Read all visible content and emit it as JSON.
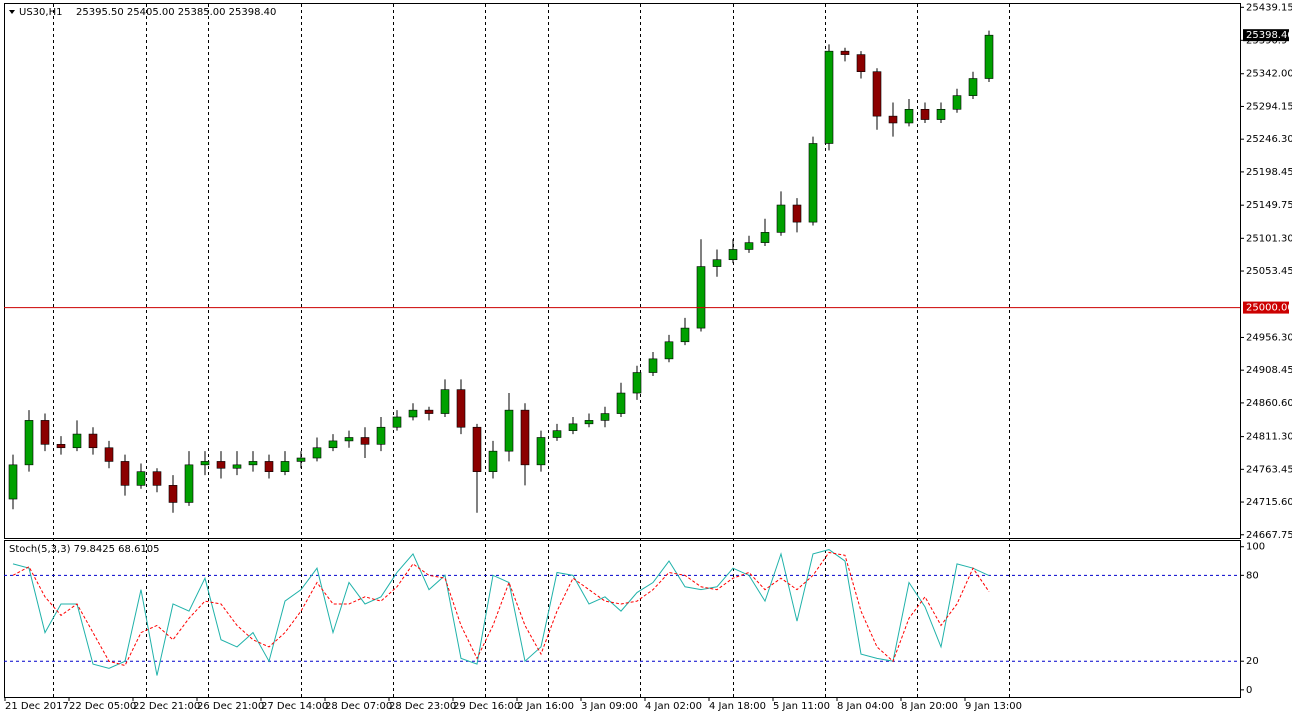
{
  "chart_data": [
    {
      "type": "candlestick",
      "title": "US30,H1",
      "subtitle": "25395.50 25405.00 25385.00 25398.40",
      "categories": [
        "21 Dec 2017",
        null,
        null,
        null,
        "22 Dec 05:00",
        null,
        null,
        null,
        "22 Dec 21:00",
        null,
        null,
        null,
        "26 Dec 21:00",
        null,
        null,
        null,
        "27 Dec 14:00",
        null,
        null,
        null,
        "28 Dec 07:00",
        null,
        null,
        null,
        "28 Dec 23:00",
        null,
        null,
        null,
        "29 Dec 16:00",
        null,
        null,
        null,
        "2 Jan 16:00",
        null,
        null,
        null,
        "3 Jan 09:00",
        null,
        null,
        null,
        "4 Jan 02:00",
        null,
        null,
        null,
        "4 Jan 18:00",
        null,
        null,
        null,
        "5 Jan 11:00",
        null,
        null,
        null,
        "8 Jan 04:00",
        null,
        null,
        null,
        "8 Jan 20:00",
        null,
        null,
        null,
        "9 Jan 13:00",
        null
      ],
      "open": [
        24720,
        24770,
        24835,
        24800,
        24795,
        24815,
        24795,
        24775,
        24740,
        24760,
        24740,
        24715,
        24770,
        24775,
        24765,
        24770,
        24775,
        24760,
        24775,
        24780,
        24795,
        24805,
        24810,
        24800,
        24825,
        24840,
        24850,
        24845,
        24880,
        24825,
        24760,
        24790,
        24850,
        24770,
        24810,
        24820,
        24830,
        24835,
        24845,
        24875,
        24905,
        24925,
        24950,
        24970,
        25060,
        25070,
        25085,
        25095,
        25110,
        25150,
        25125,
        25240,
        25375,
        25370,
        25345,
        25280,
        25270,
        25290,
        25275,
        25290,
        25310,
        25335
      ],
      "high": [
        24785,
        24850,
        24845,
        24812,
        24835,
        24825,
        24805,
        24785,
        24772,
        24765,
        24755,
        24790,
        24790,
        24790,
        24790,
        24790,
        24785,
        24790,
        24790,
        24810,
        24815,
        24820,
        24825,
        24840,
        24850,
        24860,
        24855,
        24895,
        24895,
        24830,
        24805,
        24875,
        24860,
        24820,
        24830,
        24840,
        24845,
        24855,
        24890,
        24915,
        24935,
        24960,
        24985,
        25100,
        25085,
        25100,
        25105,
        25130,
        25170,
        25160,
        25250,
        25385,
        25380,
        25375,
        25350,
        25300,
        25305,
        25300,
        25300,
        25320,
        25345,
        25405
      ],
      "low": [
        24705,
        24760,
        24790,
        24785,
        24790,
        24785,
        24765,
        24725,
        24735,
        24730,
        24700,
        24710,
        24755,
        24750,
        24755,
        24760,
        24750,
        24755,
        24765,
        24775,
        24790,
        24795,
        24780,
        24790,
        24820,
        24835,
        24835,
        24840,
        24815,
        24700,
        24750,
        24775,
        24740,
        24760,
        24805,
        24815,
        24825,
        24825,
        24840,
        24865,
        24900,
        24920,
        24945,
        24965,
        25045,
        25065,
        25080,
        25090,
        25105,
        25110,
        25120,
        25230,
        25360,
        25335,
        25260,
        25250,
        25265,
        25270,
        25270,
        25285,
        25305,
        25330
      ],
      "close": [
        24770,
        24835,
        24800,
        24795,
        24815,
        24795,
        24775,
        24740,
        24760,
        24740,
        24715,
        24770,
        24775,
        24765,
        24770,
        24775,
        24760,
        24775,
        24780,
        24795,
        24805,
        24810,
        24800,
        24825,
        24840,
        24850,
        24845,
        24880,
        24825,
        24760,
        24790,
        24850,
        24770,
        24810,
        24820,
        24830,
        24835,
        24845,
        24875,
        24905,
        24925,
        24950,
        24970,
        25060,
        25070,
        25085,
        25095,
        25110,
        25150,
        25125,
        25240,
        25375,
        25370,
        25345,
        25280,
        25270,
        25290,
        25275,
        25290,
        25310,
        25335,
        25398.4
      ],
      "up_color": "#00a000",
      "down_color": "#8b0000",
      "wick_color": "#000000",
      "ylim": [
        24663,
        25444
      ],
      "yticks": [
        25439.15,
        25390.9,
        {
          "value": 25342,
          "label": "25342.00"
        },
        25294.15,
        {
          "value": 25246.3,
          "label": "25246.30"
        },
        25198.45,
        25149.75,
        {
          "value": 25101.3,
          "label": "25101.30"
        },
        25053.45,
        {
          "value": 24956.3,
          "label": "24956.30"
        },
        24908.45,
        {
          "value": 24860.6,
          "label": "24860.60"
        },
        {
          "value": 24811.3,
          "label": "24811.30"
        },
        24763.45,
        {
          "value": 24715.6,
          "label": "24715.60"
        },
        24667.75
      ],
      "price_line": {
        "value": 25000,
        "label": "25000.00",
        "color": "#cc0000"
      },
      "last_price": {
        "value": 25398.4,
        "label": "25398.40",
        "color": "#000000"
      }
    },
    {
      "type": "line",
      "title": "Stoch(5,3,3) 79.8425 68.6105",
      "series": [
        {
          "color": "#20b2aa",
          "dash": false,
          "values": [
            88,
            85,
            40,
            60,
            60,
            18,
            15,
            20,
            70,
            10,
            60,
            55,
            78,
            35,
            30,
            40,
            20,
            62,
            70,
            85,
            40,
            75,
            60,
            65,
            82,
            95,
            70,
            80,
            22,
            18,
            80,
            75,
            20,
            30,
            82,
            80,
            60,
            65,
            55,
            68,
            75,
            90,
            72,
            70,
            72,
            85,
            80,
            62,
            95,
            48,
            95,
            98,
            90,
            25,
            22,
            20,
            75,
            58,
            30,
            88,
            85,
            79.8425
          ]
        },
        {
          "color": "#ff0000",
          "dash": true,
          "values": [
            80,
            86,
            65,
            52,
            60,
            40,
            20,
            17,
            40,
            45,
            35,
            50,
            62,
            60,
            45,
            35,
            30,
            40,
            55,
            75,
            60,
            60,
            65,
            62,
            72,
            88,
            80,
            78,
            45,
            22,
            45,
            75,
            45,
            25,
            55,
            78,
            70,
            62,
            60,
            62,
            70,
            82,
            80,
            72,
            70,
            78,
            82,
            70,
            78,
            70,
            80,
            96,
            94,
            55,
            30,
            20,
            50,
            65,
            45,
            60,
            85,
            68.6105
          ]
        }
      ],
      "ylim": [
        -5,
        104
      ],
      "yticks": [
        100,
        80,
        20,
        0
      ],
      "levels": [
        80,
        20
      ],
      "level_color": "#0000cc"
    }
  ]
}
